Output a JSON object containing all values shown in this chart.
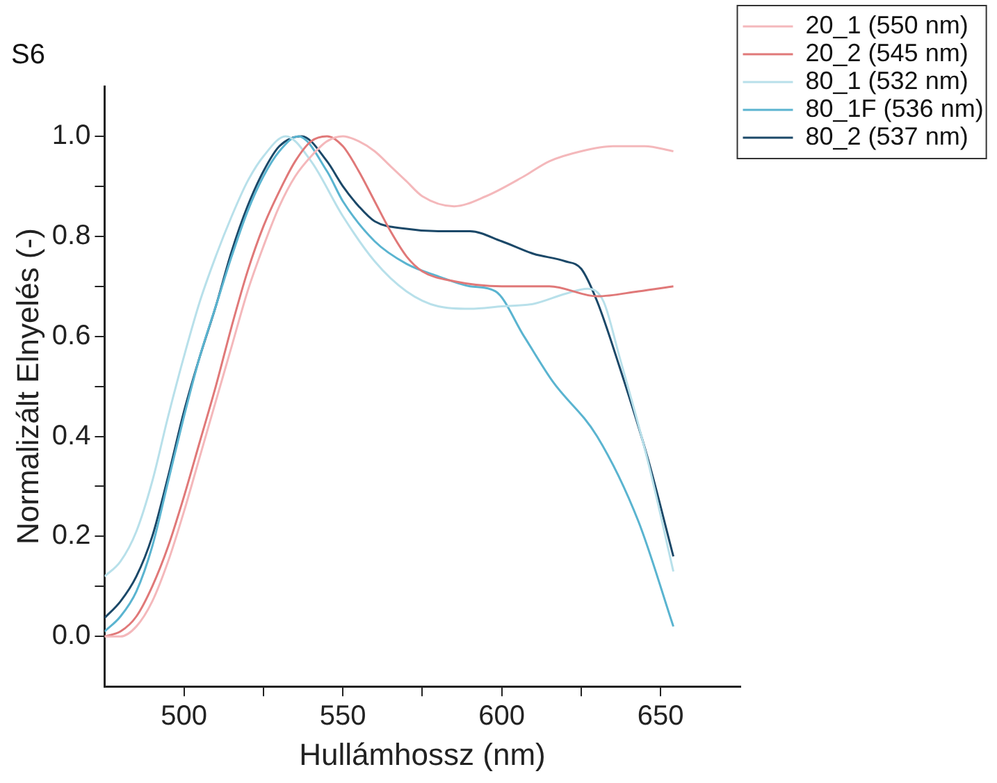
{
  "chart_data": {
    "type": "line",
    "title": "S6",
    "xlabel": "Hullámhossz (nm)",
    "ylabel": "Normalizált Elnyelés (-)",
    "xlim": [
      475,
      675
    ],
    "xticks": [
      500,
      {
        "value": 525,
        "label": null
      },
      550,
      {
        "value": 575,
        "label": null
      },
      600,
      {
        "value": 625,
        "label": null
      },
      650
    ],
    "ylim": [
      -0.1,
      1.1
    ],
    "yticks": [
      {
        "value": 0,
        "label": "0.0"
      },
      {
        "value": 0.1,
        "label": null
      },
      {
        "value": 0.2,
        "label": "0.2"
      },
      {
        "value": 0.3,
        "label": null
      },
      {
        "value": 0.4,
        "label": "0.4"
      },
      {
        "value": 0.5,
        "label": null
      },
      {
        "value": 0.6,
        "label": "0.6"
      },
      {
        "value": 0.7,
        "label": null
      },
      {
        "value": 0.8,
        "label": "0.8"
      },
      {
        "value": 0.9,
        "label": null
      },
      {
        "value": 1,
        "label": "1.0"
      }
    ],
    "grid": false,
    "legend": "top right",
    "marker": "none",
    "line_style": "solid",
    "series": [
      {
        "name": "20_1 (550 nm)",
        "color": "#f4b8bb",
        "x": [
          475,
          480,
          485,
          490,
          495,
          500,
          505,
          510,
          515,
          520,
          525,
          530,
          535,
          540,
          545,
          550,
          555,
          560,
          565,
          570,
          575,
          585,
          595,
          607,
          615,
          625,
          635,
          645,
          654
        ],
        "values": [
          0.0,
          0.0,
          0.02,
          0.07,
          0.15,
          0.25,
          0.36,
          0.47,
          0.58,
          0.69,
          0.78,
          0.86,
          0.92,
          0.96,
          0.99,
          1.0,
          0.99,
          0.97,
          0.94,
          0.91,
          0.88,
          0.86,
          0.88,
          0.92,
          0.95,
          0.97,
          0.98,
          0.98,
          0.97
        ]
      },
      {
        "name": "20_2 (545 nm)",
        "color": "#e07878",
        "x": [
          475,
          480,
          485,
          490,
          495,
          500,
          505,
          510,
          515,
          520,
          525,
          530,
          535,
          540,
          545,
          550,
          555,
          560,
          565,
          570,
          575,
          585,
          600,
          615,
          630,
          643,
          654
        ],
        "values": [
          0.0,
          0.01,
          0.04,
          0.1,
          0.18,
          0.28,
          0.39,
          0.5,
          0.62,
          0.73,
          0.82,
          0.89,
          0.95,
          0.99,
          1.0,
          0.98,
          0.93,
          0.87,
          0.81,
          0.76,
          0.73,
          0.71,
          0.7,
          0.7,
          0.68,
          0.69,
          0.7
        ]
      },
      {
        "name": "80_1 (532 nm)",
        "color": "#b8e0ea",
        "x": [
          475,
          480,
          485,
          490,
          495,
          500,
          505,
          510,
          515,
          520,
          525,
          532,
          540,
          550,
          560,
          570,
          580,
          590,
          600,
          610,
          620,
          627,
          632,
          637,
          646,
          654
        ],
        "values": [
          0.12,
          0.15,
          0.21,
          0.31,
          0.44,
          0.56,
          0.67,
          0.76,
          0.84,
          0.91,
          0.96,
          1.0,
          0.95,
          0.84,
          0.75,
          0.69,
          0.66,
          0.655,
          0.66,
          0.665,
          0.685,
          0.695,
          0.67,
          0.56,
          0.35,
          0.13
        ]
      },
      {
        "name": "80_1F (536 nm)",
        "color": "#5ab4d0",
        "x": [
          475,
          480,
          485,
          490,
          495,
          500,
          505,
          510,
          515,
          520,
          525,
          530,
          536,
          545,
          550,
          560,
          570,
          580,
          590,
          598,
          607,
          616,
          630,
          643,
          654
        ],
        "values": [
          0.01,
          0.04,
          0.09,
          0.18,
          0.31,
          0.44,
          0.56,
          0.66,
          0.76,
          0.85,
          0.92,
          0.97,
          1.0,
          0.93,
          0.87,
          0.79,
          0.745,
          0.72,
          0.7,
          0.69,
          0.6,
          0.51,
          0.4,
          0.23,
          0.02
        ]
      },
      {
        "name": "80_2 (537 nm)",
        "color": "#1b4868",
        "x": [
          475,
          480,
          485,
          490,
          495,
          500,
          505,
          510,
          515,
          520,
          525,
          530,
          537,
          545,
          550,
          555,
          560,
          570,
          580,
          590,
          600,
          610,
          620,
          625,
          630,
          637,
          646,
          654
        ],
        "values": [
          0.037,
          0.07,
          0.12,
          0.2,
          0.32,
          0.45,
          0.56,
          0.66,
          0.77,
          0.86,
          0.93,
          0.98,
          1.0,
          0.95,
          0.9,
          0.86,
          0.83,
          0.815,
          0.81,
          0.81,
          0.79,
          0.765,
          0.75,
          0.735,
          0.67,
          0.54,
          0.355,
          0.16
        ]
      }
    ]
  }
}
